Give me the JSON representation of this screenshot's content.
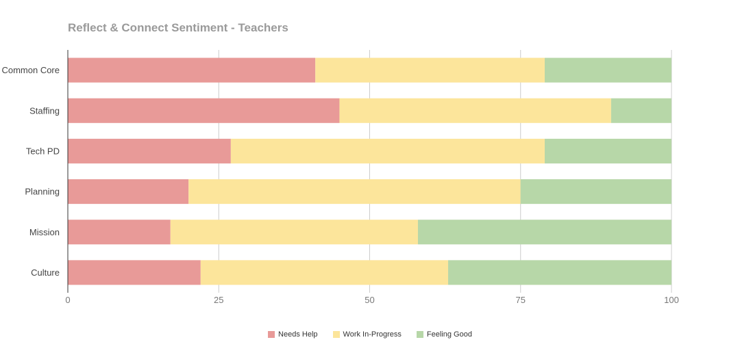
{
  "chart_data": {
    "type": "bar",
    "orientation": "horizontal",
    "stacked": true,
    "title": "Reflect & Connect Sentiment - Teachers",
    "categories": [
      "Common Core",
      "Staffing",
      "Tech PD",
      "Planning",
      "Mission",
      "Culture"
    ],
    "series": [
      {
        "name": "Needs Help",
        "color": "#e89a98",
        "values": [
          41,
          45,
          27,
          20,
          17,
          22
        ]
      },
      {
        "name": "Work In-Progress",
        "color": "#fce59b",
        "values": [
          38,
          45,
          52,
          55,
          41,
          41
        ]
      },
      {
        "name": "Feeling Good",
        "color": "#b7d7a8",
        "values": [
          21,
          10,
          21,
          25,
          42,
          37
        ]
      }
    ],
    "xlim": [
      0,
      100
    ],
    "xticks": [
      0,
      25,
      50,
      75,
      100
    ],
    "grid": true,
    "legend_position": "bottom"
  }
}
